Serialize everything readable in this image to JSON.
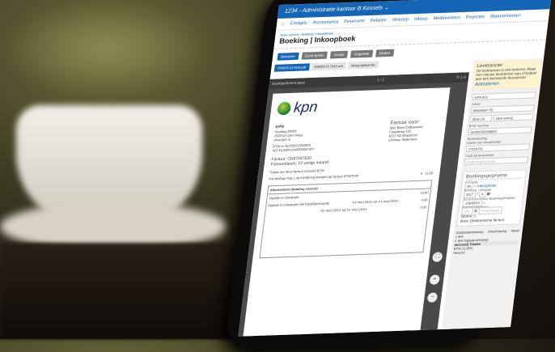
{
  "window": {
    "title": "1234 - Administratie kantoor B Kessels ⌄"
  },
  "nav": [
    "Cockpits",
    "Accountancy",
    "Financieel",
    "Relaties",
    "Verkoop",
    "Inkoop",
    "Medewerkers",
    "Projecten",
    "Abonnementen"
  ],
  "breadcrumb": "Scan service › Boeking › Inkoopboek",
  "page_title": "Boeking | Inkoopboek",
  "buttons": [
    "Bewaren",
    "Extra acties",
    "Vorige",
    "Volgende",
    "Sluiten"
  ],
  "tabs": [
    "000005-017543.pdf",
    "000005-017543.xml",
    "Weeg bijlage toe"
  ],
  "viewer": {
    "filename": "SysAttachment.aspx",
    "page": "1 / 1"
  },
  "invoice": {
    "brand": "kpn",
    "company": "KPN",
    "address1": "Postbus 30000",
    "address2": "2500 GA Den Haag",
    "web": "www.kpn.nl",
    "btw_label": "BTW-nr",
    "btw": "NL009292556B01",
    "iko_label": "IKO",
    "iko": "NL30PKON0000587307",
    "factuur_voor": "Factuur voor:",
    "customer": [
      "Mac Bean Coffeeworld",
      "Fregatweg 101",
      "6222 NZ Maastricht",
      "Limburg, Nederland"
    ],
    "factuur": "Factuur: CN87587830",
    "datum": "Factuurdatum: 22 vorige maand",
    "totaal": "Totaal van deze factuur inclusief BTW",
    "afschrijving": "Het bedrag mag u op mindering brengen op factuur 87587830",
    "currency": "€",
    "total": "12,00",
    "section": "Abonnement (Betaling vooruit)",
    "lines": [
      "Digitale tv-ontvanger",
      "Digitale tv-ontvanger met harddiskrecorder"
    ],
    "periods": [
      "XX mnd 20XX tot XX mnd 20XX",
      "XX mnd 20XX tot XX mnd 20XX"
    ],
    "amounts": [
      "12,00",
      "4,00",
      "8,00"
    ]
  },
  "supplier": {
    "header": "Leverancier",
    "warning": "De leverancier is niet herkend. Maak een nieuwe leverancier aan of koppel aan een bestaande leverancier.",
    "cancel": "Annuleren",
    "name": "KPN B.V.",
    "address_label": "Adres",
    "address": "Maanplein 55",
    "postcode": "2516 CK",
    "city": "DEN HAAG",
    "btw_label": "BTW nummer",
    "btw": "NL009292556B01",
    "bank_label": "Bankrekening",
    "kvk_label": "Kamer van Koophandel",
    "kvk": "27124701",
    "code_label": "Code bij leverancier",
    "code_placeholder": "Code bij leverancier"
  },
  "booking": {
    "header": "Boekingsgegevens",
    "dagboek_label": "Dagboek",
    "dagboek": "60",
    "dagboek_name": "Inkoopboek",
    "period_label": "Boekjaar / Periode",
    "year": "2017",
    "period": "4",
    "stuk_label": "Boekstuknummer",
    "stuk": "17600015",
    "template_label": "Boekingstemplate",
    "ext_label": "Externe koppeling",
    "url_placeholder": "URL",
    "omschr_placeholder": "Omschrijving",
    "storno_label": "Storno",
    "bron": "Bron: Elektronische factuur"
  },
  "lines_table": {
    "headers": [
      "Grootboekrekening",
      "Omschrijving",
      "Vanaf"
    ],
    "row2_desc": "Digitale-ontvangt",
    "footer": [
      "Inclusief) Totalen",
      "BTW 21,00%",
      "Verschil"
    ]
  }
}
